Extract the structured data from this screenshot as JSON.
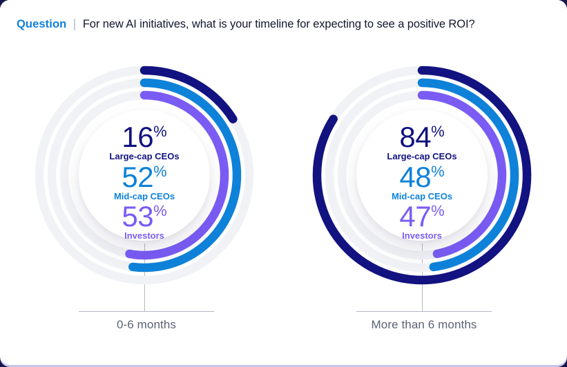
{
  "header": {
    "label": "Question",
    "question": "For new AI initiatives, what is your timeline for expecting to see a positive ROI?"
  },
  "colors": {
    "navy": "#121280",
    "azure": "#0E82D9",
    "purple": "#7A5CF4",
    "track": "#F1F2F5",
    "q_blue": "#1080D8",
    "text_dark": "#14162F",
    "label_gray": "#5A6374",
    "line_gray": "#B4B9C2",
    "page_bg": "#17164A",
    "card_edge": "#C8C5ED"
  },
  "chart_data": {
    "type": "donut",
    "unit": "%",
    "start_angle": "12-oclock",
    "direction": "clockwise",
    "rings": [
      "Large-cap CEOs",
      "Mid-cap CEOs",
      "Investors"
    ],
    "ring_colors": {
      "Large-cap CEOs": "#121280",
      "Mid-cap CEOs": "#0E82D9",
      "Investors": "#7A5CF4"
    },
    "groups": [
      {
        "label": "0-6 months",
        "values": {
          "Large-cap CEOs": 16,
          "Mid-cap CEOs": 52,
          "Investors": 53
        }
      },
      {
        "label": "More than 6 months",
        "values": {
          "Large-cap CEOs": 84,
          "Mid-cap CEOs": 48,
          "Investors": 47
        }
      }
    ]
  }
}
